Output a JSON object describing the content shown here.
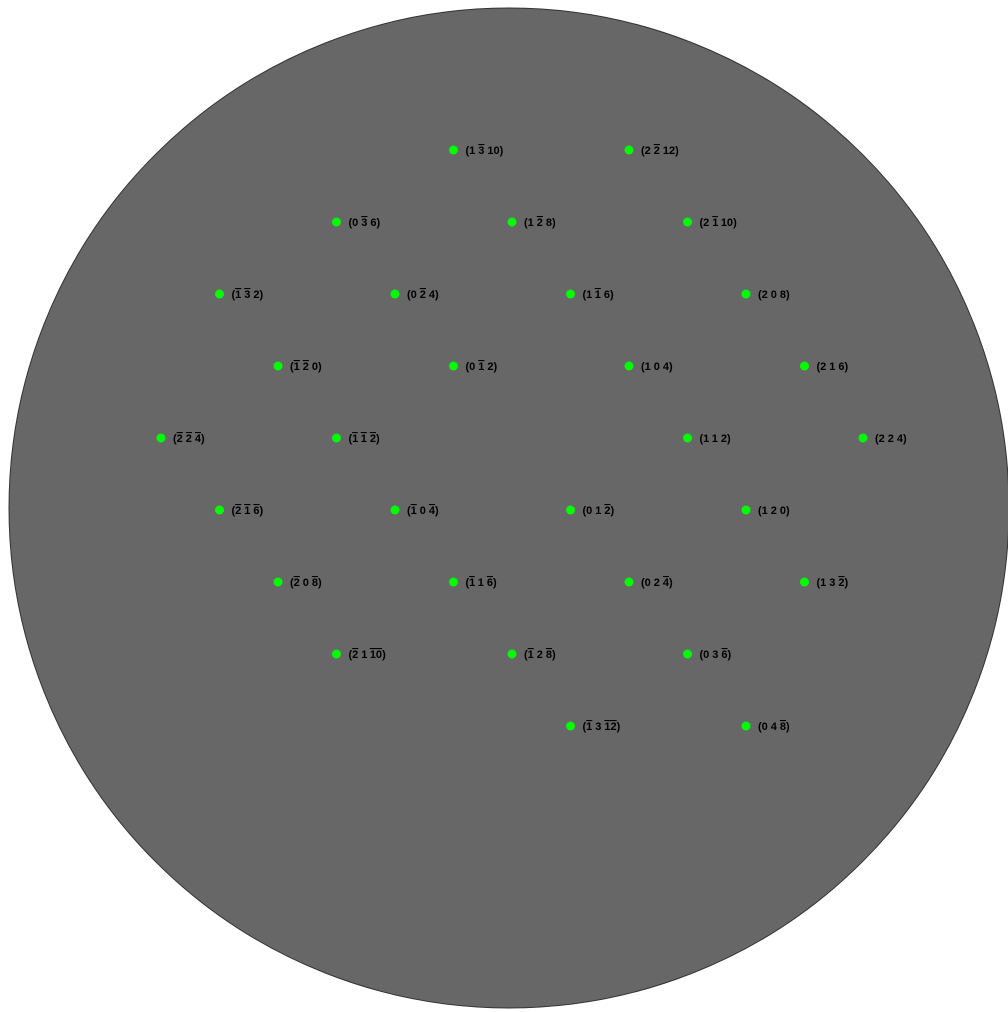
{
  "colors": {
    "background": "#ffffff",
    "disc": "#676767",
    "disc_outline": "#333333",
    "spot": "#00ff00",
    "label": "#000000"
  },
  "reflections": [
    {
      "h": -2,
      "k": -2,
      "l": -4
    },
    {
      "h": -1,
      "k": -3,
      "l": 2
    },
    {
      "h": -2,
      "k": -1,
      "l": -6
    },
    {
      "h": -1,
      "k": -2,
      "l": 0
    },
    {
      "h": -2,
      "k": 0,
      "l": -8
    },
    {
      "h": 0,
      "k": -3,
      "l": 6
    },
    {
      "h": -1,
      "k": -1,
      "l": -2
    },
    {
      "h": -2,
      "k": 1,
      "l": -10
    },
    {
      "h": 0,
      "k": -2,
      "l": 4
    },
    {
      "h": -1,
      "k": 0,
      "l": -4
    },
    {
      "h": 1,
      "k": -3,
      "l": 10
    },
    {
      "h": 0,
      "k": -1,
      "l": 2
    },
    {
      "h": -1,
      "k": 1,
      "l": -6
    },
    {
      "h": 1,
      "k": -2,
      "l": 8
    },
    {
      "h": -1,
      "k": 2,
      "l": -8
    },
    {
      "h": 1,
      "k": -1,
      "l": 6
    },
    {
      "h": 0,
      "k": 1,
      "l": -2
    },
    {
      "h": 2,
      "k": -2,
      "l": 12
    },
    {
      "h": 1,
      "k": 0,
      "l": 4
    },
    {
      "h": 0,
      "k": 2,
      "l": -4
    },
    {
      "h": 2,
      "k": -1,
      "l": 10
    },
    {
      "h": 1,
      "k": 1,
      "l": 2
    },
    {
      "h": 0,
      "k": 3,
      "l": -6
    },
    {
      "h": 2,
      "k": 0,
      "l": 8
    },
    {
      "h": 1,
      "k": 2,
      "l": 0
    },
    {
      "h": 2,
      "k": 1,
      "l": 6
    },
    {
      "h": 1,
      "k": 3,
      "l": -2
    },
    {
      "h": 2,
      "k": 2,
      "l": 4
    },
    {
      "h": -1,
      "k": 3,
      "l": -12
    },
    {
      "h": 0,
      "k": 4,
      "l": -8
    }
  ]
}
